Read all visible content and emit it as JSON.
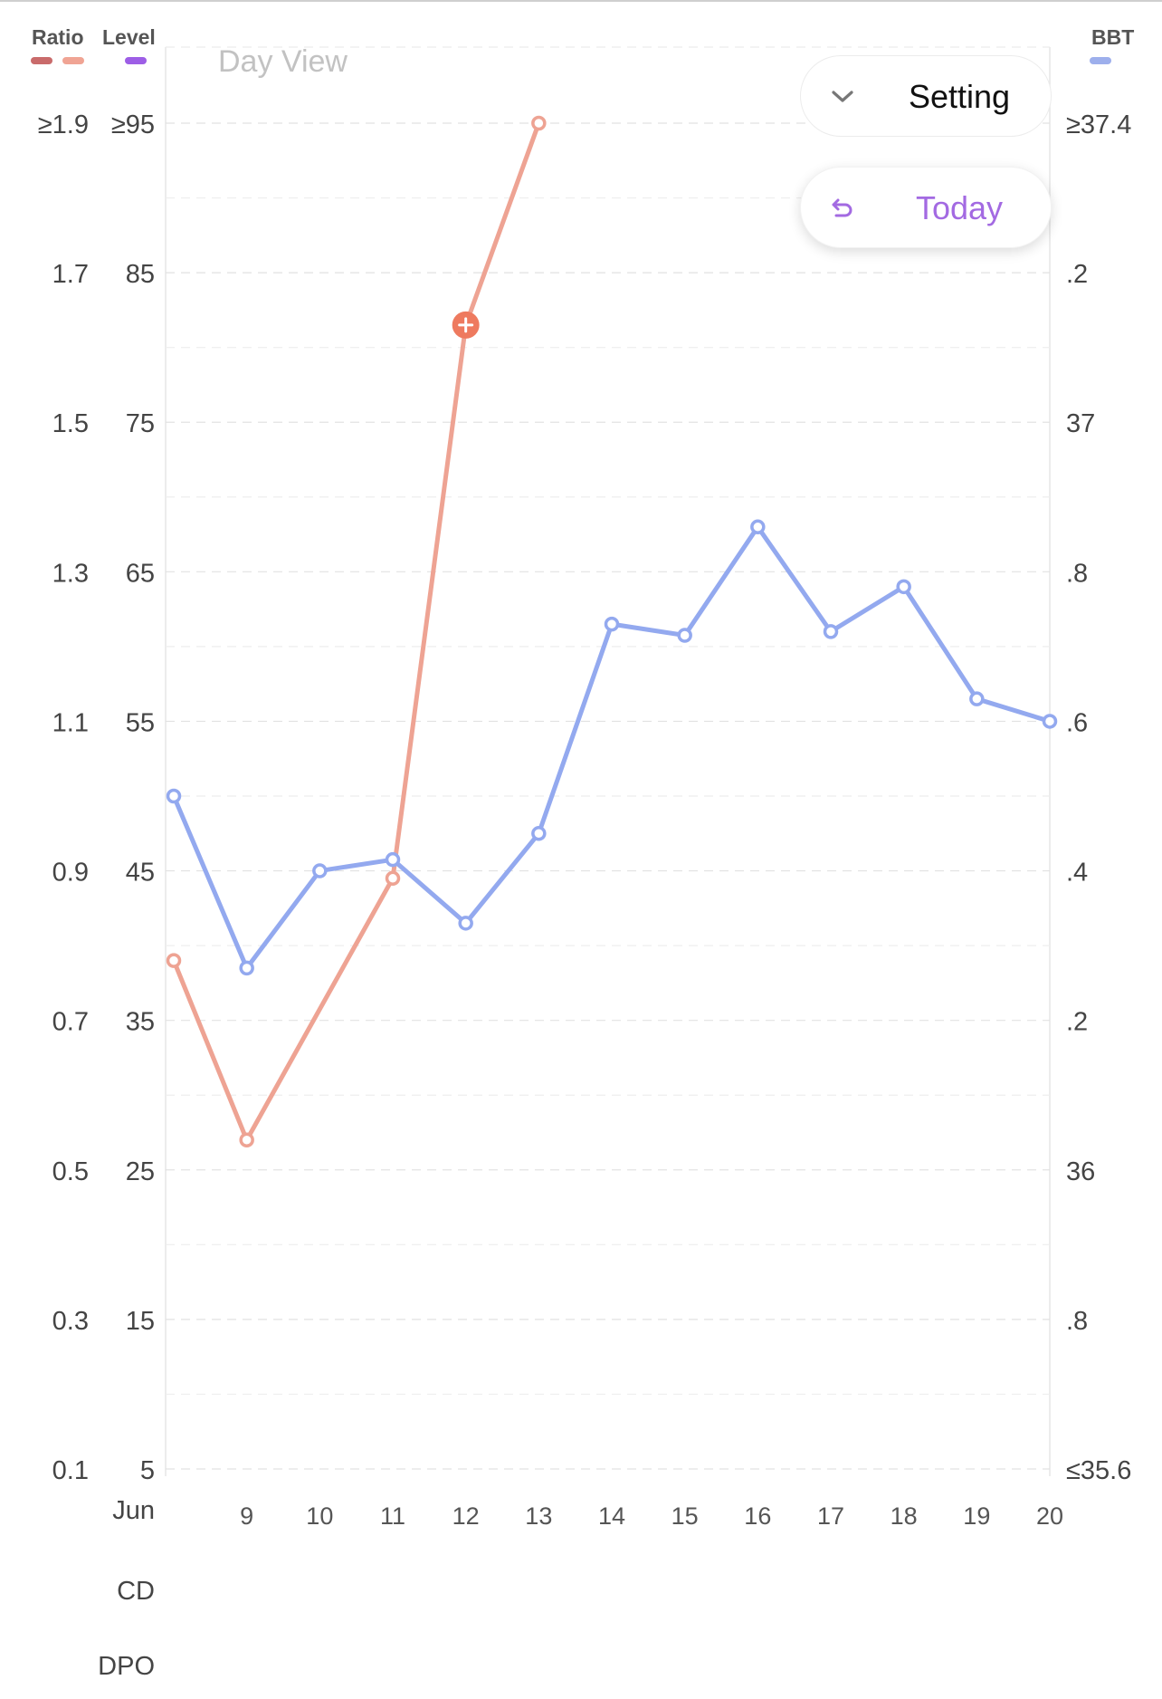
{
  "legend": {
    "ratio_label": "Ratio",
    "level_label": "Level",
    "bbt_label": "BBT",
    "ratio_colors": [
      "#c96b6b",
      "#f0a494"
    ],
    "level_color": "#9d5ee6",
    "bbt_color": "#9dafec"
  },
  "header": {
    "view_title": "Day View"
  },
  "controls": {
    "setting_label": "Setting",
    "setting_icon": "chevron-down-icon",
    "today_label": "Today",
    "today_icon": "undo-arrow-icon"
  },
  "chart_data": {
    "type": "line",
    "x": [
      8,
      9,
      10,
      11,
      12,
      13,
      14,
      15,
      16,
      17,
      18,
      19,
      20
    ],
    "x_tick_labels": [
      "9",
      "10",
      "11",
      "12",
      "13",
      "14",
      "15",
      "16",
      "17",
      "18",
      "19",
      "20"
    ],
    "x_month_label": "Jun",
    "row_labels": [
      "CD",
      "DPO"
    ],
    "left_axis_ratio": {
      "tick_labels": [
        "≥1.9",
        "1.7",
        "1.5",
        "1.3",
        "1.1",
        "0.9",
        "0.7",
        "0.5",
        "0.3",
        "0.1"
      ],
      "range": [
        0.1,
        1.9
      ]
    },
    "left_axis_level": {
      "tick_labels": [
        "≥95",
        "85",
        "75",
        "65",
        "55",
        "45",
        "35",
        "25",
        "15",
        "5"
      ],
      "range": [
        5,
        95
      ]
    },
    "right_axis_bbt": {
      "tick_labels": [
        "≥37.4",
        ".2",
        "37",
        ".8",
        ".6",
        ".4",
        ".2",
        "36",
        ".8",
        "≤35.6"
      ],
      "range": [
        35.6,
        37.4
      ]
    },
    "grid": true,
    "series": [
      {
        "axis": "level",
        "color": "#eea393",
        "points": [
          {
            "x": 8,
            "y": 39
          },
          {
            "x": 9,
            "y": 27
          },
          {
            "x": 11,
            "y": 44.5
          },
          {
            "x": 12,
            "y": 81.5
          },
          {
            "x": 13,
            "y": 95
          }
        ],
        "highlight_x": 12,
        "highlight_color": "#ee7a5f"
      },
      {
        "axis": "bbt",
        "color": "#93a9ef",
        "points": [
          {
            "x": 8,
            "y": 36.5
          },
          {
            "x": 9,
            "y": 36.27
          },
          {
            "x": 10,
            "y": 36.4
          },
          {
            "x": 11,
            "y": 36.415
          },
          {
            "x": 12,
            "y": 36.33
          },
          {
            "x": 13,
            "y": 36.45
          },
          {
            "x": 14,
            "y": 36.73
          },
          {
            "x": 15,
            "y": 36.715
          },
          {
            "x": 16,
            "y": 36.86
          },
          {
            "x": 17,
            "y": 36.72
          },
          {
            "x": 18,
            "y": 36.78
          },
          {
            "x": 19,
            "y": 36.63
          },
          {
            "x": 20,
            "y": 36.6
          }
        ]
      }
    ]
  }
}
